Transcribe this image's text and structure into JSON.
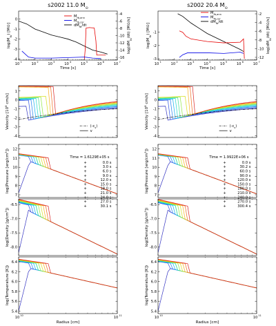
{
  "chart_data": {
    "type": "line",
    "left_column": {
      "title": "s2002 11.0 M",
      "title_sub": "⊙",
      "time_label": "Time = 1.6129E+05 s",
      "snapshot_times": [
        "0.0 s",
        "3.0 s",
        "6.0 s",
        "9.0 s",
        "12.0 s",
        "15.0 s",
        "18.0 s",
        "21.0 s",
        "24.0 s",
        "27.0 s",
        "30.1 s"
      ],
      "top_panel": {
        "xlabel": "Time [s]",
        "ylabel_left": "log(M",
        "ylabel_left_sub": "fb",
        "ylabel_left_end": ") [M",
        "ylabel_right": "log(dM",
        "ylabel_right_sub": "fb",
        "ylabel_right_end": "/dt) [M",
        "xticks": [
          "10",
          "10",
          "10",
          "10",
          "10",
          "10",
          "10"
        ],
        "xtick_exp": [
          "1",
          "2",
          "3",
          "4",
          "5",
          "6",
          "7"
        ],
        "yticks_left": [
          "0",
          "-1",
          "-2",
          "-3",
          "-4"
        ],
        "yticks_right": [
          "-4",
          "-6",
          "-8",
          "-10",
          "-12",
          "-14",
          "-16"
        ],
        "legend": [
          {
            "name": "M",
            "sub": "fb,ann",
            "color": "#e60000"
          },
          {
            "name": "M",
            "sub": "fb,cor",
            "color": "#0000e6"
          },
          {
            "name": "dM",
            "sub": "fb",
            "tail": "/dt",
            "color": "#000000"
          }
        ],
        "series": {
          "dMdt": [
            [
              1.0,
              -0.2
            ],
            [
              1.5,
              -0.5
            ],
            [
              2.0,
              -1.0
            ],
            [
              2.5,
              -1.3
            ],
            [
              3.0,
              -1.6
            ],
            [
              3.5,
              -1.8
            ],
            [
              4.0,
              -2.0
            ],
            [
              4.5,
              -2.3
            ],
            [
              5.0,
              -2.7
            ],
            [
              5.5,
              -3.1
            ],
            [
              6.0,
              -3.3
            ],
            [
              6.4,
              -3.5
            ]
          ],
          "M_ann": [
            [
              5.0,
              -4.0
            ],
            [
              5.05,
              -3.0
            ],
            [
              5.1,
              -0.9
            ],
            [
              5.3,
              -0.85
            ],
            [
              5.6,
              -0.9
            ],
            [
              5.7,
              -2.2
            ],
            [
              5.75,
              -3.6
            ],
            [
              6.3,
              -3.6
            ]
          ],
          "M_cor": [
            [
              1.2,
              -3.2
            ],
            [
              1.6,
              -3.8
            ],
            [
              2.0,
              -3.9
            ],
            [
              3.0,
              -3.9
            ],
            [
              4.0,
              -3.85
            ],
            [
              5.0,
              -3.8
            ],
            [
              5.5,
              -3.9
            ],
            [
              6.0,
              -3.95
            ]
          ]
        }
      },
      "velocity_panel": {
        "ylabel": "Velocity [10",
        "ylabel_tail": " cm/s]",
        "ylabel_exp": "8",
        "yticks": [
          "1",
          "0",
          "-1",
          "-2",
          "-3",
          "-4"
        ],
        "ylim": [
          -4.2,
          1.6
        ],
        "legend": [
          {
            "name": "(-c",
            "sub": "s",
            "tail": ")",
            "style": "dashdot"
          },
          {
            "name": "v",
            "style": "solid"
          }
        ]
      },
      "pressure_panel": {
        "ylabel": "log(Pressure [erg/cm",
        "ylabel_exp": "3",
        "ylabel_tail": "])",
        "yticks": [
          "12",
          "11",
          "10",
          "9",
          "8",
          "7"
        ],
        "ylim": [
          6.7,
          12.5
        ]
      },
      "density_panel": {
        "ylabel": "log(Density [g/cm",
        "ylabel_exp": "3",
        "ylabel_tail": "])",
        "yticks": [
          "-6.5",
          "-7.0",
          "-7.5",
          "-8.0"
        ],
        "ylim": [
          -8.3,
          -6.3
        ]
      },
      "temperature_panel": {
        "ylabel": "log(Temperature [K])",
        "yticks": [
          "6.4",
          "6.2",
          "6.0",
          "5.8",
          "5.6",
          "5.4"
        ],
        "ylim": [
          5.35,
          6.5
        ],
        "xlabel": "Radius [cm]",
        "xticks": [
          "10",
          "10"
        ],
        "xtick_exp": [
          "10",
          "11"
        ]
      }
    },
    "right_column": {
      "title": "s2002 20.4 M",
      "title_sub": "⊙",
      "time_label": "Time = 1.9922E+06 s",
      "snapshot_times": [
        "0.0 s",
        "30.2 s",
        "60.0 s",
        "90.0 s",
        "120.0 s",
        "150.0 s",
        "180.0 s",
        "210.0 s",
        "240.0 s",
        "270.0 s",
        "300.4 s"
      ],
      "top_panel": {
        "xlabel": "Time [s]",
        "xticks": [
          "10",
          "10",
          "10",
          "10",
          "10",
          "10",
          "10"
        ],
        "xtick_exp": [
          "1",
          "2",
          "3",
          "4",
          "5",
          "6",
          "7"
        ],
        "yticks_left": [
          "-1",
          "-2",
          "-3"
        ],
        "yticks_right": [
          "-2",
          "-4",
          "-6",
          "-8",
          "-10",
          "-12"
        ],
        "series": {
          "dMdt": [
            [
              2.2,
              0.4
            ],
            [
              2.5,
              0.2
            ],
            [
              3.0,
              -0.3
            ],
            [
              3.5,
              -0.7
            ],
            [
              4.0,
              -1.1
            ],
            [
              4.5,
              -1.4
            ],
            [
              5.0,
              -1.7
            ],
            [
              5.5,
              -2.0
            ],
            [
              6.0,
              -2.3
            ],
            [
              6.2,
              -2.45
            ]
          ],
          "M_ann": [
            [
              2.3,
              -0.9
            ],
            [
              2.5,
              -1.0
            ],
            [
              2.7,
              -1.3
            ],
            [
              3.0,
              -1.5
            ],
            [
              3.5,
              -1.6
            ],
            [
              4.0,
              -1.7
            ],
            [
              5.0,
              -1.8
            ],
            [
              6.0,
              -1.75
            ],
            [
              6.2,
              -1.5
            ],
            [
              6.25,
              -3.0
            ]
          ],
          "M_cor": [
            [
              2.3,
              -2.9
            ],
            [
              2.5,
              -2.7
            ],
            [
              2.8,
              -2.55
            ],
            [
              3.2,
              -2.55
            ],
            [
              4.0,
              -2.55
            ],
            [
              5.0,
              -2.6
            ],
            [
              6.0,
              -2.5
            ],
            [
              6.2,
              -2.6
            ]
          ]
        }
      }
    },
    "snapshot_colors": [
      "#3030c0",
      "#2a4fe0",
      "#1f7ff0",
      "#10b0f0",
      "#20d8d0",
      "#40e090",
      "#90e840",
      "#d8e020",
      "#f8b020",
      "#f06a1a",
      "#d82020"
    ]
  }
}
